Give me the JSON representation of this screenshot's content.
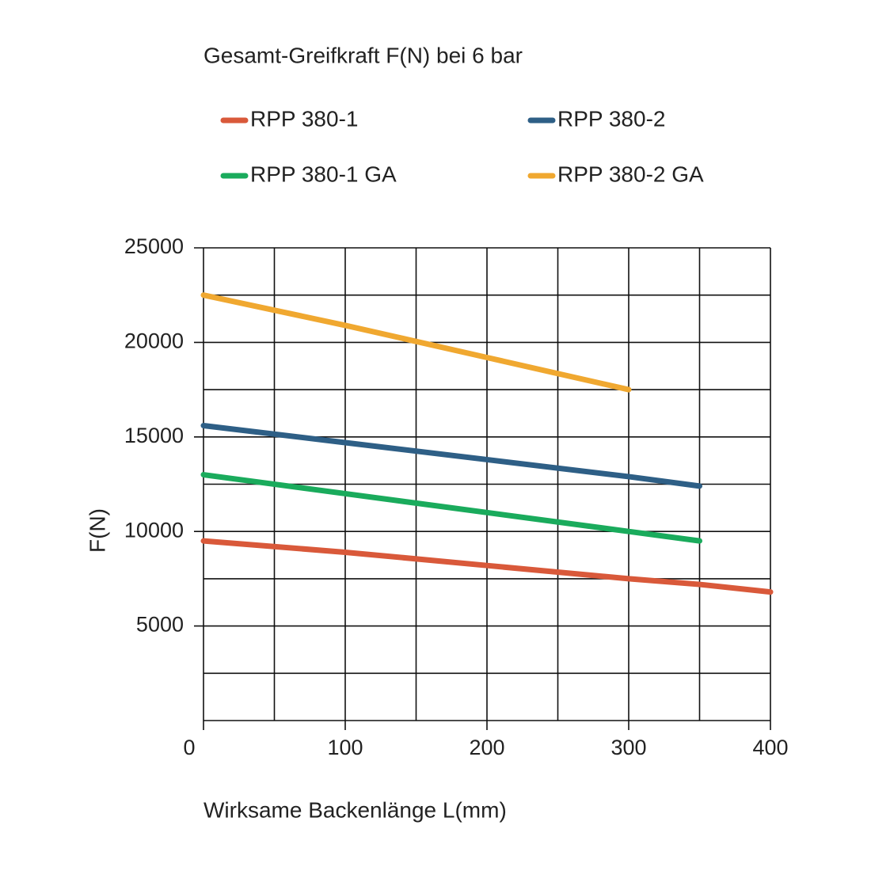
{
  "chart_data": {
    "type": "line",
    "title": "Gesamt-Greifkraft F(N) bei 6 bar",
    "x_label": "Wirksame Backenlänge L(mm)",
    "y_label": "F(N)",
    "x": [
      0,
      100,
      200,
      300,
      350,
      400
    ],
    "series": [
      {
        "name": "RPP 380-1",
        "color": "#d9593a",
        "values": [
          9500,
          8900,
          8200,
          7500,
          7200,
          6800
        ]
      },
      {
        "name": "RPP 380-2",
        "color": "#2e5f86",
        "values": [
          15600,
          14700,
          13800,
          12900,
          12400,
          null
        ]
      },
      {
        "name": "RPP 380-1 GA",
        "color": "#1aab5c",
        "values": [
          13000,
          12000,
          11000,
          10000,
          9500,
          null
        ]
      },
      {
        "name": "RPP 380-2 GA",
        "color": "#f0a830",
        "values": [
          22500,
          20900,
          19200,
          17500,
          null,
          null
        ]
      }
    ],
    "xlim": [
      0,
      400
    ],
    "xticks": [
      0,
      100,
      200,
      300,
      400
    ],
    "xminor": [
      50,
      150,
      250,
      350
    ],
    "ylim": [
      0,
      25000
    ],
    "yticks": [
      5000,
      10000,
      15000,
      20000,
      25000
    ],
    "yminor": [
      0,
      2500,
      7500,
      12500,
      17500,
      22500
    ],
    "grid": true
  }
}
